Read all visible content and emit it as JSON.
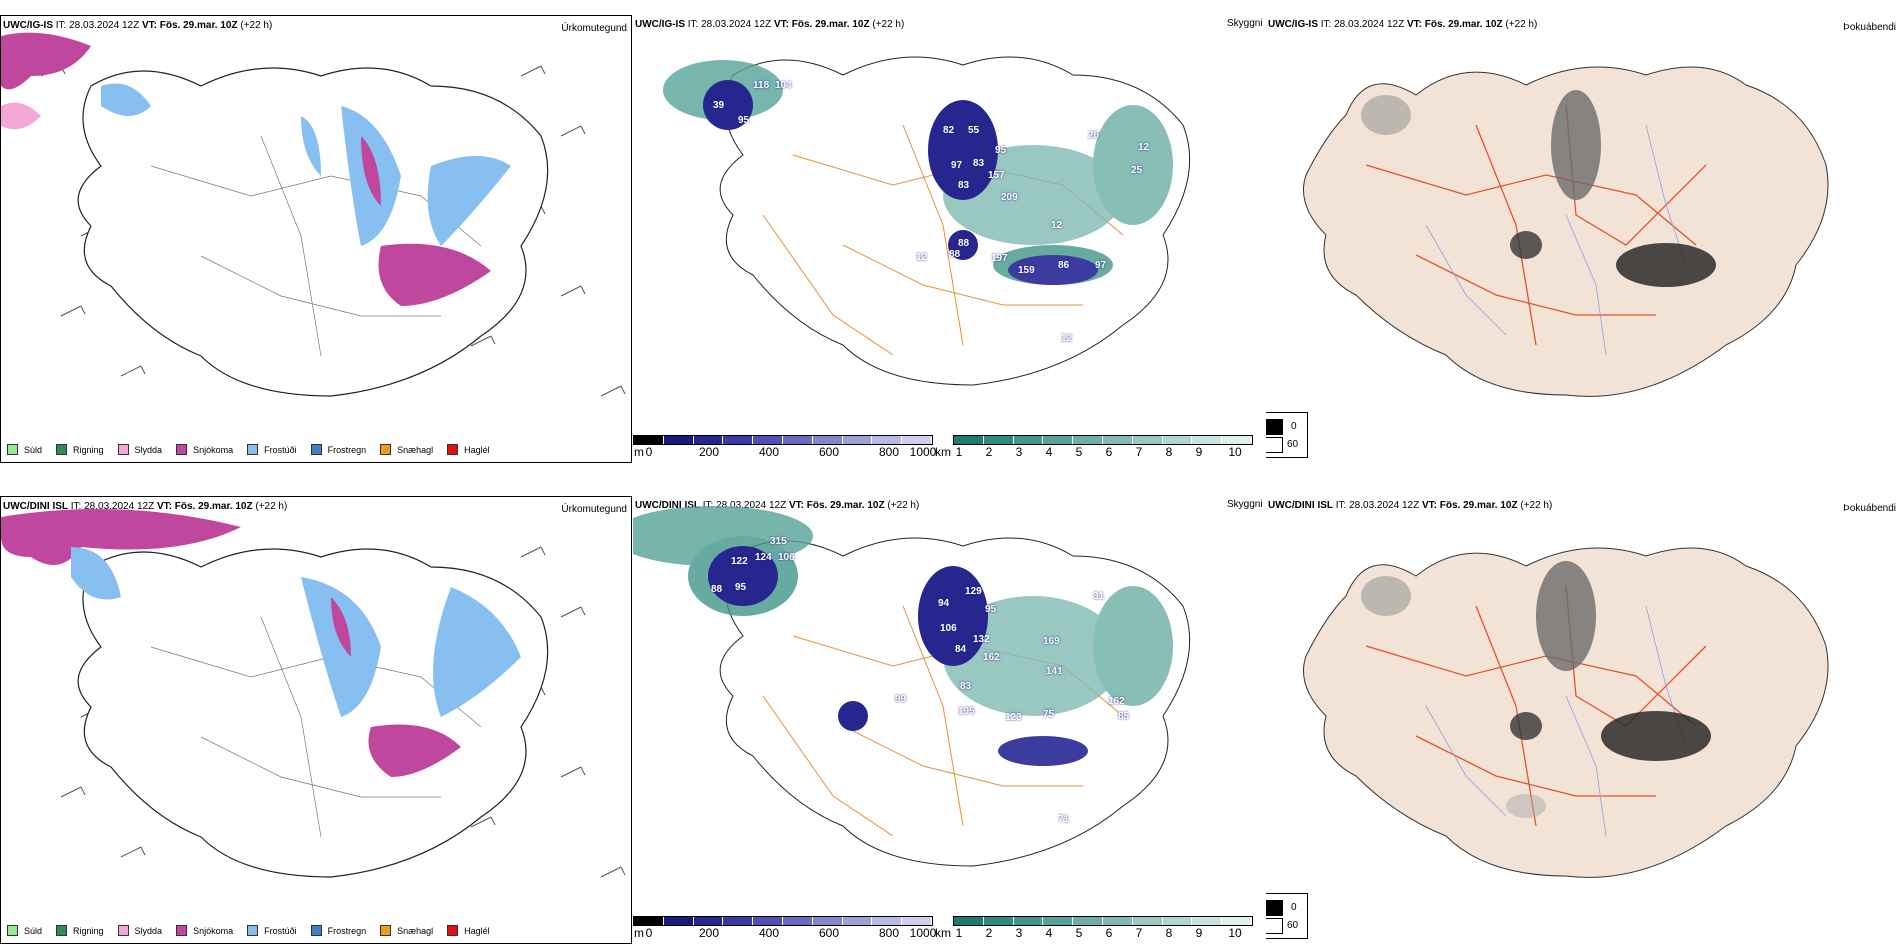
{
  "rows": [
    {
      "model": "UWC/IG-IS",
      "it_label": "IT:",
      "it_value": "28.03.2024 12Z",
      "vt_label": "VT:",
      "vt_value": "Fös. 29.mar. 10Z",
      "lead": "(+22 h)",
      "precip_field": "Úrkomutegund",
      "ceiling_field": "Skyggni",
      "cloud_field": "Þokuábendi",
      "ceiling_numbers": [
        "118",
        "104",
        "39",
        "95",
        "82",
        "55",
        "97",
        "83",
        "83",
        "157",
        "95",
        "209",
        "88",
        "88",
        "197",
        "159",
        "86",
        "97",
        "12",
        "12",
        "26",
        "25",
        "12",
        "12"
      ]
    },
    {
      "model": "UWC/DINI ISL",
      "it_label": "IT:",
      "it_value": "28.03.2024 12Z",
      "vt_label": "VT:",
      "vt_value": "Fös. 29.mar. 10Z",
      "lead": "(+22 h)",
      "precip_field": "Úrkomutegund",
      "ceiling_field": "Skyggni",
      "cloud_field": "Þokuábendi",
      "ceiling_numbers": [
        "315",
        "122",
        "124",
        "106",
        "88",
        "95",
        "94",
        "129",
        "95",
        "106",
        "132",
        "84",
        "162",
        "83",
        "195",
        "123",
        "75",
        "162",
        "85",
        "99",
        "71",
        "31",
        "169",
        "141"
      ]
    }
  ],
  "precip_legend": [
    {
      "label": "Súld",
      "color": "#90ee90"
    },
    {
      "label": "Rigning",
      "color": "#2e8b57"
    },
    {
      "label": "Slydda",
      "color": "#f4a6d4"
    },
    {
      "label": "Snjókoma",
      "color": "#c0479e"
    },
    {
      "label": "Frostúði",
      "color": "#87bff0"
    },
    {
      "label": "Frostregn",
      "color": "#3a7fc8"
    },
    {
      "label": "Snæhagl",
      "color": "#f39c1c"
    },
    {
      "label": "Haglél",
      "color": "#e01010"
    }
  ],
  "ceiling_scale": {
    "unit": "m",
    "labels": [
      "0",
      "200",
      "400",
      "600",
      "800",
      "1000"
    ],
    "colors": [
      "#000000",
      "#1a1a7a",
      "#26268e",
      "#3b3ba0",
      "#5050b0",
      "#6a6ac0",
      "#8585cc",
      "#a0a0d8",
      "#b8b8e2",
      "#d0d0ec"
    ]
  },
  "visibility_scale": {
    "unit": "km",
    "labels": [
      "1",
      "2",
      "3",
      "4",
      "5",
      "6",
      "7",
      "8",
      "9",
      "10"
    ],
    "colors": [
      "#1f7a70",
      "#2f8a80",
      "#42968c",
      "#56a298",
      "#6aaea4",
      "#80bab2",
      "#98c8c0",
      "#b0d6d0",
      "#c8e4e0",
      "#e0f0ee"
    ]
  },
  "fog_legend": {
    "labels": [
      "0",
      "60"
    ]
  }
}
